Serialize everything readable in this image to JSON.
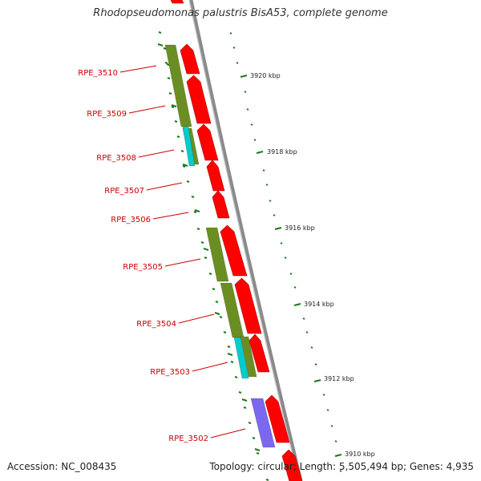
{
  "title": "Rhodopseudomonas palustris BisA53, complete genome",
  "accession": "Accession: NC_008435",
  "summary": "Topology: circular; Length: 5,505,494 bp; Genes: 4,935",
  "colors": {
    "background": "#ffffff",
    "backbone": "#8a8a8a",
    "cds": "#ff0000",
    "cog_olive": "#6b8e23",
    "cog_cyan": "#00cccc",
    "cog_purple": "#7b68ee",
    "tick": "#1a7a1a",
    "label": "#cc0000"
  },
  "genes": [
    "RPE_3510",
    "RPE_3509",
    "RPE_3508",
    "RPE_3507",
    "RPE_3506",
    "RPE_3505",
    "RPE_3504",
    "RPE_3503",
    "RPE_3502"
  ],
  "ticks": [
    "3920 kbp",
    "3918 kbp",
    "3916 kbp",
    "3914 kbp",
    "3912 kbp",
    "3910 kbp"
  ]
}
